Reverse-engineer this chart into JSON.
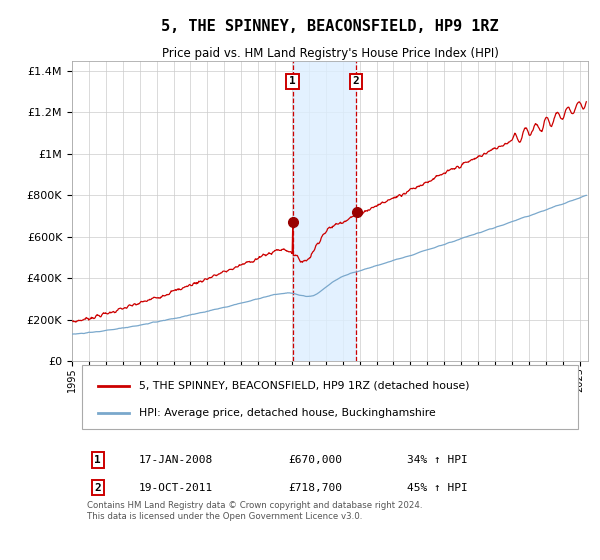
{
  "title": "5, THE SPINNEY, BEACONSFIELD, HP9 1RZ",
  "subtitle": "Price paid vs. HM Land Registry's House Price Index (HPI)",
  "ylim": [
    0,
    1450000
  ],
  "xlim_start": 1995.0,
  "xlim_end": 2025.5,
  "yticks": [
    0,
    200000,
    400000,
    600000,
    800000,
    1000000,
    1200000,
    1400000
  ],
  "ytick_labels": [
    "£0",
    "£200K",
    "£400K",
    "£600K",
    "£800K",
    "£1M",
    "£1.2M",
    "£1.4M"
  ],
  "sale1_date": 2008.04,
  "sale1_price": 670000,
  "sale1_label": "17-JAN-2008",
  "sale1_price_str": "£670,000",
  "sale1_pct": "34% ↑ HPI",
  "sale2_date": 2011.8,
  "sale2_price": 718700,
  "sale2_label": "19-OCT-2011",
  "sale2_price_str": "£718,700",
  "sale2_pct": "45% ↑ HPI",
  "line_color_red": "#cc0000",
  "line_color_blue": "#7aa8cc",
  "shade_color": "#ddeeff",
  "marker_color": "#990000",
  "legend_label_red": "5, THE SPINNEY, BEACONSFIELD, HP9 1RZ (detached house)",
  "legend_label_blue": "HPI: Average price, detached house, Buckinghamshire",
  "footer": "Contains HM Land Registry data © Crown copyright and database right 2024.\nThis data is licensed under the Open Government Licence v3.0.",
  "background_color": "#ffffff",
  "grid_color": "#cccccc",
  "box_edge_color": "#cc0000"
}
